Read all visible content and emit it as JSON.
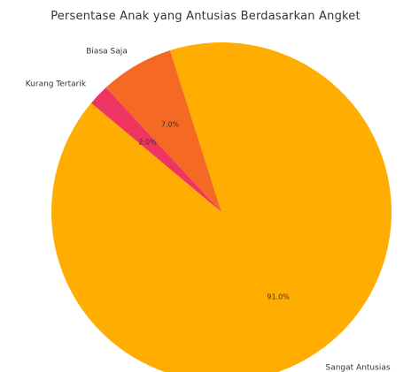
{
  "chart_data": {
    "type": "pie",
    "title": "Persentase Anak yang Antusias Berdasarkan Angket",
    "categories": [
      "Sangat Antusias",
      "Biasa Saja",
      "Kurang Tertarik"
    ],
    "values": [
      91.0,
      7.0,
      2.0
    ],
    "value_labels": [
      "91.0%",
      "7.0%",
      "2.0%"
    ],
    "colors": [
      "#ffad00",
      "#f46a25",
      "#ee3562"
    ],
    "start_angle_deg": 140,
    "direction": "counterclockwise"
  }
}
